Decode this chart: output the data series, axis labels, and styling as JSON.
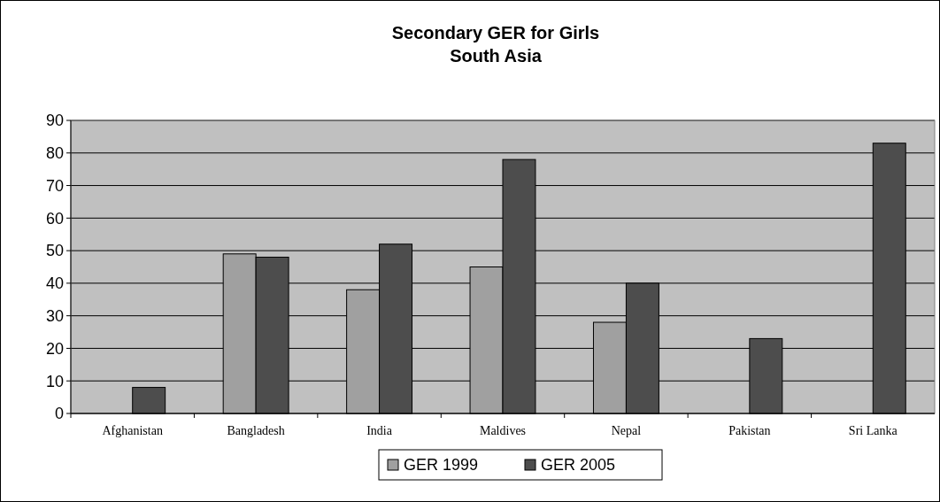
{
  "chart_data": {
    "type": "bar",
    "title": "Secondary GER for Girls\nSouth Asia",
    "categories": [
      "Afghanistan",
      "Bangladesh",
      "India",
      "Maldives",
      "Nepal",
      "Pakistan",
      "Sri Lanka"
    ],
    "series": [
      {
        "name": "GER 1999",
        "color": "#a0a0a0",
        "values": [
          null,
          49,
          38,
          45,
          28,
          null,
          null
        ]
      },
      {
        "name": "GER 2005",
        "color": "#4d4d4d",
        "values": [
          8,
          48,
          52,
          78,
          40,
          23,
          83
        ]
      }
    ],
    "ylim": [
      0,
      90
    ],
    "yticks": [
      0,
      10,
      20,
      30,
      40,
      50,
      60,
      70,
      80,
      90
    ],
    "grid": "y",
    "legend": "bottom"
  }
}
